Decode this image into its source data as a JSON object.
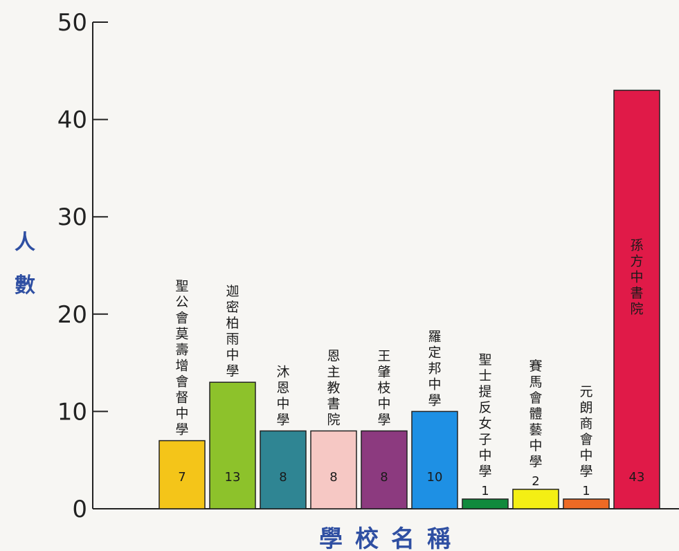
{
  "chart_data": {
    "type": "bar",
    "ylabel": "人數",
    "xlabel": "學校名稱",
    "ylim": [
      0,
      50
    ],
    "yticks": [
      0,
      10,
      20,
      30,
      40,
      50
    ],
    "grid": false,
    "categories": [
      "聖公會莫壽增會督中學",
      "迦密柏雨中學",
      "沐恩中學",
      "恩主教書院",
      "王肇枝中學",
      "羅定邦中學",
      "聖士提反女子中學",
      "賽馬會體藝中學",
      "元朗商會中學",
      "孫方中書院"
    ],
    "values": [
      7,
      13,
      8,
      8,
      8,
      10,
      1,
      2,
      1,
      43
    ],
    "colors": [
      "#f4c519",
      "#8dc22b",
      "#2f8593",
      "#f6c8c4",
      "#8c3a7f",
      "#1e90e4",
      "#108a3c",
      "#f4ef14",
      "#ee6a24",
      "#e01a48"
    ]
  }
}
